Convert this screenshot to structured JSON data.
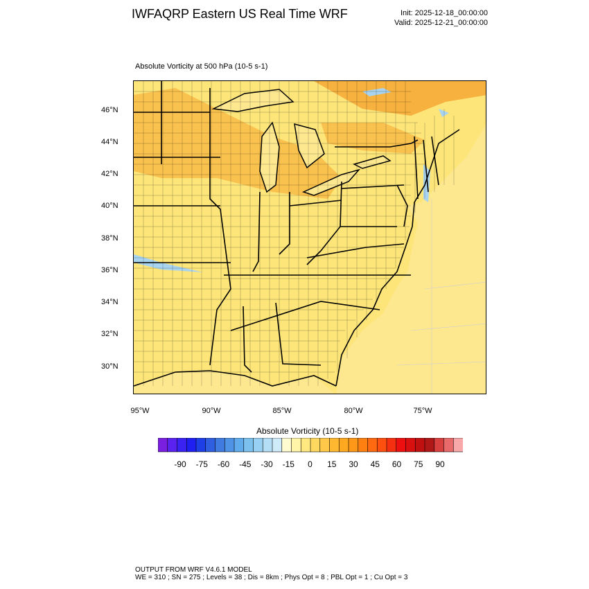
{
  "header": {
    "title": "IWFAQRP Eastern US Real Time WRF",
    "init": "Init: 2025-12-18_00:00:00",
    "valid": "Valid: 2025-12-21_00:00:00"
  },
  "map": {
    "subtitle": "Absolute Vorticity at 500 hPa   (10-5 s-1)",
    "lat_labels": [
      "46°N",
      "44°N",
      "42°N",
      "40°N",
      "38°N",
      "36°N",
      "34°N",
      "32°N",
      "30°N"
    ],
    "lon_labels": [
      "95°W",
      "90°W",
      "85°W",
      "80°W",
      "75°W"
    ],
    "colors": {
      "land_base": "#fde57a",
      "land_orange": "#f9c24e",
      "ocean": "#fde890",
      "negative_blue": "#a9d4f0",
      "boundary": "#000000"
    }
  },
  "colorbar": {
    "title": "Absolute Vorticity  (10-5 s-1)",
    "colors": [
      "#7a1fe0",
      "#5a22ee",
      "#3a22f2",
      "#1f1ff2",
      "#1f3fe6",
      "#2f5fe0",
      "#3f7be0",
      "#4f93e6",
      "#5fabec",
      "#7cc0ee",
      "#97d0f2",
      "#b4def5",
      "#cfeaf8",
      "#fffbd0",
      "#fff4a8",
      "#ffe880",
      "#ffd860",
      "#ffc848",
      "#ffb830",
      "#ffa820",
      "#ff9818",
      "#ff8010",
      "#ff6a10",
      "#ff5010",
      "#f53010",
      "#ee1010",
      "#d81010",
      "#c01010",
      "#b01818",
      "#d84040",
      "#e86a6a",
      "#f8a8a8"
    ],
    "labels": [
      "-90",
      "-75",
      "-60",
      "-45",
      "-30",
      "-15",
      "0",
      "15",
      "30",
      "45",
      "60",
      "75",
      "90"
    ]
  },
  "footer": {
    "line1": "OUTPUT FROM WRF V4.6.1 MODEL",
    "line2": "WE = 310 ; SN = 275 ; Levels = 38 ; Dis = 8km ; Phys Opt = 8 ; PBL Opt = 1 ; Cu Opt = 3"
  }
}
